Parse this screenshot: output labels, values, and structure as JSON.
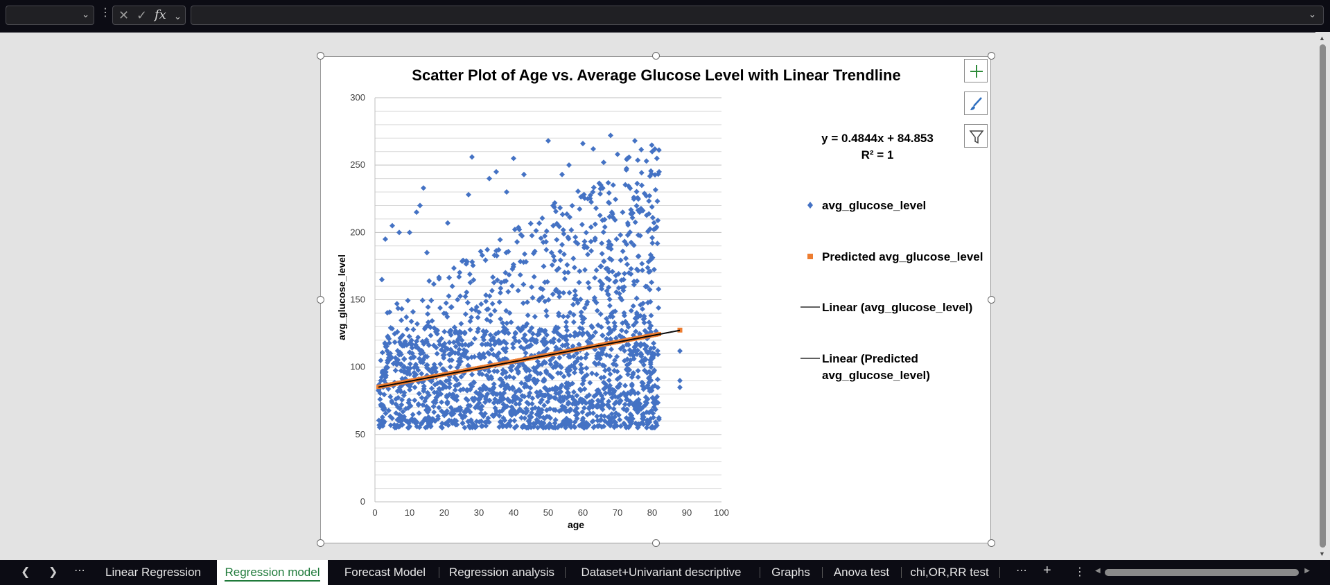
{
  "formula_bar": {
    "name_box_value": "",
    "formula_value": "",
    "fx_label": "fx"
  },
  "chart": {
    "title": "Scatter Plot of Age vs. Average Glucose Level with Linear Trendline",
    "equation": "y = 0.4844x + 84.853",
    "r_squared": "R² = 1",
    "legend": {
      "item1": "avg_glucose_level",
      "item2": "Predicted avg_glucose_level",
      "item3": "Linear (avg_glucose_level)",
      "item4_line1": "Linear (Predicted",
      "item4_line2": "avg_glucose_level)"
    }
  },
  "chart_data": {
    "type": "scatter",
    "title": "Scatter Plot of Age vs. Average Glucose Level with Linear Trendline",
    "xlabel": "age",
    "ylabel": "avg_glucose_level",
    "xlim": [
      0,
      100
    ],
    "ylim": [
      0,
      300
    ],
    "x_ticks": [
      "0",
      "10",
      "20",
      "30",
      "40",
      "50",
      "60",
      "70",
      "80",
      "90",
      "100"
    ],
    "y_ticks": [
      "0",
      "50",
      "100",
      "150",
      "200",
      "250",
      "300"
    ],
    "grid": "horizontal",
    "legend_position": "right",
    "colors": {
      "avg_glucose_level": "#4472c4",
      "predicted": "#ed7d31",
      "trendline": "#000000"
    },
    "series": [
      {
        "name": "avg_glucose_level",
        "marker": "diamond",
        "description_points": [
          [
            2,
            165
          ],
          [
            3,
            195
          ],
          [
            5,
            205
          ],
          [
            7,
            200
          ],
          [
            10,
            200
          ],
          [
            12,
            215
          ],
          [
            13,
            220
          ],
          [
            14,
            233
          ],
          [
            15,
            185
          ],
          [
            21,
            207
          ],
          [
            27,
            228
          ],
          [
            28,
            256
          ],
          [
            33,
            240
          ],
          [
            35,
            245
          ],
          [
            38,
            230
          ],
          [
            40,
            255
          ],
          [
            43,
            243
          ],
          [
            50,
            268
          ],
          [
            54,
            243
          ],
          [
            56,
            250
          ],
          [
            60,
            266
          ],
          [
            63,
            262
          ],
          [
            66,
            252
          ],
          [
            68,
            272
          ],
          [
            70,
            258
          ],
          [
            75,
            268
          ],
          [
            77,
            235
          ],
          [
            80,
            260
          ],
          [
            82,
            245
          ],
          [
            88,
            112
          ],
          [
            88,
            90
          ],
          [
            88,
            85
          ]
        ]
      },
      {
        "name": "Predicted avg_glucose_level",
        "marker": "square",
        "x_range": [
          1,
          88
        ],
        "y_range": [
          85.3,
          127.5
        ]
      },
      {
        "name": "Linear (avg_glucose_level)",
        "type": "trendline",
        "slope": 0.4844,
        "intercept": 84.853
      },
      {
        "name": "Linear (Predicted avg_glucose_level)",
        "type": "trendline",
        "slope": 0.4844,
        "intercept": 84.853
      }
    ]
  },
  "sheet_tabs": [
    {
      "label": "Linear Regression",
      "active": false
    },
    {
      "label": "Regression model",
      "active": true
    },
    {
      "label": "Forecast Model",
      "active": false
    },
    {
      "label": "Regression analysis",
      "active": false
    },
    {
      "label": "Dataset+Univariant descriptive",
      "active": false
    },
    {
      "label": "Graphs",
      "active": false
    },
    {
      "label": "Anova test",
      "active": false
    },
    {
      "label": "chi,OR,RR test",
      "active": false
    }
  ],
  "icons": {
    "add_chart_element": "plus-icon",
    "chart_styles": "brush-icon",
    "chart_filters": "filter-icon",
    "tab_prev": "chevron-left-icon",
    "tab_next": "chevron-right-icon",
    "more_tabs": "ellipsis-icon",
    "add_sheet": "plus-icon",
    "options": "vertical-ellipsis-icon"
  }
}
